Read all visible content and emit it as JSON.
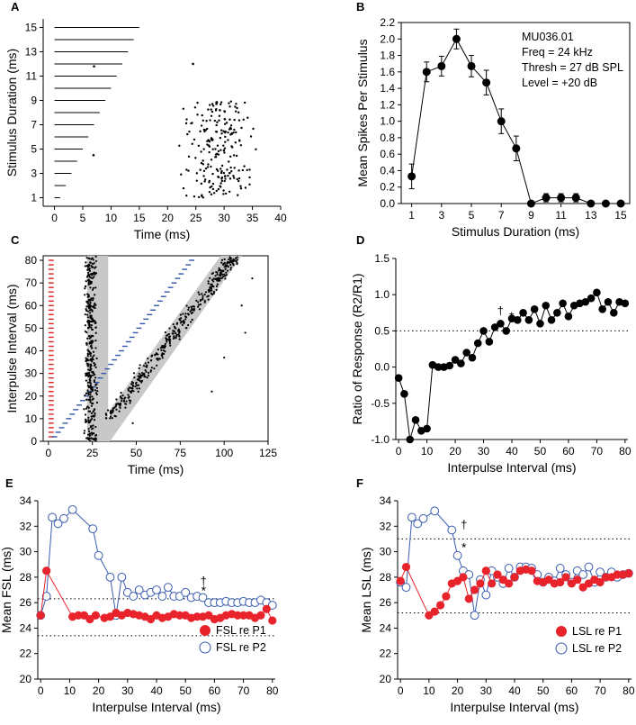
{
  "chart_data": [
    {
      "panel": "A",
      "type": "raster",
      "xlabel": "Time (ms)",
      "ylabel": "Stimulus Duration (ms)",
      "xlim": [
        -2,
        40
      ],
      "ylim": [
        0.3,
        15.7
      ],
      "xticks": [
        0,
        5,
        10,
        15,
        20,
        25,
        30,
        35,
        40
      ],
      "yticks": [
        1,
        3,
        5,
        7,
        9,
        11,
        13,
        15
      ],
      "durations": [
        1,
        2,
        3,
        4,
        5,
        6,
        7,
        8,
        9,
        10,
        11,
        12,
        13,
        14,
        15
      ],
      "isolated_points": [
        [
          7.0,
          11.8
        ],
        [
          6.9,
          4.5
        ],
        [
          24.5,
          12.0
        ]
      ],
      "spike_cluster": {
        "t_range": [
          22,
          35
        ],
        "dur_range": [
          1,
          9
        ]
      }
    },
    {
      "panel": "B",
      "type": "line",
      "xlabel": "Stimulus Duration (ms)",
      "ylabel": "Mean Spikes Per Stimulus",
      "xlim": [
        0.3,
        15.6
      ],
      "ylim": [
        0,
        2.2
      ],
      "xticks": [
        1,
        3,
        5,
        7,
        9,
        11,
        13,
        15
      ],
      "yticks": [
        "0.0",
        "0.2",
        "0.4",
        "0.6",
        "0.8",
        "1.0",
        "1.2",
        "1.4",
        "1.6",
        "1.8",
        "2.0",
        "2.2"
      ],
      "x": [
        1,
        2,
        3,
        4,
        5,
        6,
        7,
        8,
        9,
        10,
        11,
        12,
        13,
        14,
        15
      ],
      "values": [
        0.33,
        1.6,
        1.67,
        2.0,
        1.67,
        1.47,
        1.0,
        0.67,
        0.0,
        0.07,
        0.07,
        0.07,
        0.0,
        0.0,
        0.0
      ],
      "errors": [
        0.15,
        0.12,
        0.12,
        0.12,
        0.13,
        0.15,
        0.15,
        0.15,
        0,
        0.05,
        0.05,
        0.05,
        0,
        0,
        0
      ],
      "annotations": [
        "MU036.01",
        "Freq = 24 kHz",
        "Thresh = 27 dB SPL",
        "Level = +20 dB"
      ]
    },
    {
      "panel": "C",
      "type": "raster",
      "xlabel": "Time (ms)",
      "ylabel": "Interpulse Interval (ms)",
      "xlim": [
        -3,
        125
      ],
      "ylim": [
        0,
        82
      ],
      "xticks": [
        0,
        25,
        50,
        75,
        100,
        125
      ],
      "yticks": [
        0,
        10,
        20,
        30,
        40,
        50,
        60,
        70,
        80
      ],
      "stimulus_p1_color": "#dd2222",
      "stimulus_p2_color": "#3355aa",
      "band_color": "#c8c8c8"
    },
    {
      "panel": "D",
      "type": "line",
      "xlabel": "Interpulse Interval (ms)",
      "ylabel": "Ratio of Response (R2/R1)",
      "xlim": [
        -1,
        81
      ],
      "ylim": [
        -1.0,
        1.5
      ],
      "xticks": [
        0,
        10,
        20,
        30,
        40,
        50,
        60,
        70,
        80
      ],
      "yticks": [
        "-1.0",
        "-0.5",
        "0.0",
        "0.5",
        "1.0",
        "1.5"
      ],
      "reference_line": 0.5,
      "x": [
        0,
        2,
        4,
        6,
        8,
        10,
        12,
        14,
        16,
        18,
        20,
        22,
        24,
        26,
        28,
        30,
        32,
        34,
        36,
        38,
        40,
        42,
        44,
        46,
        48,
        50,
        52,
        54,
        56,
        58,
        60,
        62,
        64,
        66,
        68,
        70,
        72,
        74,
        76,
        78,
        80
      ],
      "values": [
        -0.15,
        -0.37,
        -1.0,
        -0.73,
        -0.88,
        -0.85,
        0.03,
        0.0,
        0.0,
        0.02,
        0.1,
        0.05,
        0.2,
        0.13,
        0.33,
        0.5,
        0.35,
        0.55,
        0.6,
        0.5,
        0.67,
        0.65,
        0.75,
        0.65,
        0.8,
        0.6,
        0.85,
        0.65,
        0.75,
        0.88,
        0.7,
        0.85,
        0.88,
        0.9,
        0.95,
        1.03,
        0.8,
        0.9,
        0.75,
        0.9,
        0.88
      ],
      "markers": [
        {
          "label": "†",
          "x": 36
        },
        {
          "label": "*",
          "x": 38
        }
      ]
    },
    {
      "panel": "E",
      "type": "line",
      "xlabel": "Interpulse Interval (ms)",
      "ylabel": "Mean FSL (ms)",
      "xlim": [
        -1,
        81
      ],
      "ylim": [
        20,
        34
      ],
      "xticks": [
        0,
        10,
        20,
        30,
        40,
        50,
        60,
        70,
        80
      ],
      "yticks": [
        20,
        22,
        24,
        26,
        28,
        30,
        32,
        34
      ],
      "reference_lines": [
        26.3,
        23.4
      ],
      "series": [
        {
          "name": "FSL re P1",
          "style": "filled",
          "color": "#e8232b",
          "x": [
            0,
            2,
            11,
            13,
            15,
            17,
            19,
            22,
            24,
            26,
            28,
            30,
            32,
            34,
            36,
            38,
            40,
            42,
            44,
            46,
            48,
            50,
            52,
            54,
            56,
            58,
            60,
            62,
            64,
            66,
            68,
            70,
            72,
            74,
            76,
            78,
            80
          ],
          "values": [
            25.0,
            28.5,
            24.9,
            25.0,
            25.0,
            24.7,
            25.0,
            24.8,
            24.9,
            25.2,
            25.0,
            25.2,
            25.1,
            25.0,
            24.9,
            24.7,
            25.0,
            24.8,
            24.9,
            25.1,
            25.0,
            25.0,
            24.8,
            24.9,
            24.9,
            25.0,
            24.7,
            24.8,
            25.0,
            25.1,
            25.0,
            25.0,
            25.0,
            24.8,
            25.0,
            25.5,
            24.6
          ]
        },
        {
          "name": "FSL re P2",
          "style": "open",
          "color": "#3a5bb0",
          "x": [
            0,
            2,
            4,
            6,
            8,
            11,
            18,
            20,
            24,
            26,
            28,
            30,
            32,
            34,
            36,
            38,
            40,
            42,
            44,
            46,
            48,
            50,
            52,
            54,
            56,
            58,
            60,
            62,
            64,
            66,
            68,
            70,
            72,
            74,
            76,
            78,
            80
          ],
          "values": [
            25.0,
            26.5,
            32.7,
            32.2,
            32.6,
            33.3,
            31.8,
            29.7,
            28.0,
            25.0,
            28.0,
            26.8,
            26.5,
            27.0,
            26.6,
            26.8,
            27.0,
            26.5,
            27.2,
            26.5,
            26.5,
            26.8,
            26.4,
            26.5,
            26.4,
            26.0,
            26.0,
            26.0,
            26.1,
            26.0,
            26.0,
            26.1,
            26.0,
            26.0,
            26.2,
            26.0,
            25.8
          ]
        }
      ],
      "markers": [
        {
          "label": "†",
          "x": 55
        },
        {
          "label": "*",
          "x": 55
        }
      ],
      "legend_position": "bottom-right"
    },
    {
      "panel": "F",
      "type": "line",
      "xlabel": "Interpulse Interval (ms)",
      "ylabel": "Mean LSL (ms)",
      "xlim": [
        -1,
        81
      ],
      "ylim": [
        20,
        34
      ],
      "xticks": [
        0,
        10,
        20,
        30,
        40,
        50,
        60,
        70,
        80
      ],
      "yticks": [
        20,
        22,
        24,
        26,
        28,
        30,
        32,
        34
      ],
      "reference_lines": [
        31.0,
        25.2
      ],
      "series": [
        {
          "name": "LSL re P1",
          "style": "filled",
          "color": "#e8232b",
          "x": [
            0,
            2,
            10,
            12,
            14,
            16,
            18,
            20,
            22,
            24,
            26,
            28,
            30,
            32,
            34,
            36,
            38,
            40,
            42,
            44,
            46,
            48,
            50,
            52,
            54,
            56,
            58,
            60,
            62,
            64,
            66,
            68,
            70,
            72,
            74,
            76,
            78,
            80
          ],
          "values": [
            27.7,
            28.8,
            25.0,
            25.3,
            25.8,
            26.5,
            27.5,
            27.7,
            28.0,
            26.3,
            27.0,
            27.5,
            28.5,
            27.5,
            28.2,
            27.8,
            27.5,
            28.0,
            28.5,
            28.6,
            28.5,
            27.7,
            27.6,
            27.8,
            27.5,
            27.6,
            28.0,
            27.5,
            27.8,
            27.2,
            27.5,
            27.8,
            27.6,
            28.0,
            28.0,
            28.2,
            28.2,
            28.3
          ]
        },
        {
          "name": "LSL re P2",
          "style": "open",
          "color": "#3a5bb0",
          "x": [
            0,
            2,
            4,
            6,
            8,
            12,
            18,
            20,
            22,
            24,
            26,
            28,
            30,
            32,
            34,
            36,
            38,
            40,
            42,
            44,
            46,
            48,
            50,
            52,
            54,
            56,
            58,
            60,
            62,
            64,
            66,
            68,
            70,
            72,
            74,
            76,
            78,
            80
          ],
          "values": [
            27.6,
            27.2,
            32.7,
            32.2,
            32.6,
            33.2,
            31.7,
            29.7,
            28.5,
            28.2,
            25.0,
            27.8,
            26.6,
            28.5,
            28.0,
            27.5,
            28.7,
            28.0,
            28.8,
            28.8,
            28.7,
            28.2,
            27.6,
            28.0,
            27.7,
            28.7,
            28.2,
            27.6,
            28.5,
            28.2,
            28.8,
            27.6,
            28.4,
            28.0,
            28.4,
            28.0,
            28.2,
            28.3
          ]
        }
      ],
      "markers": [
        {
          "label": "†",
          "x": 21
        },
        {
          "label": "*",
          "x": 21
        }
      ],
      "legend_position": "bottom-right"
    }
  ]
}
